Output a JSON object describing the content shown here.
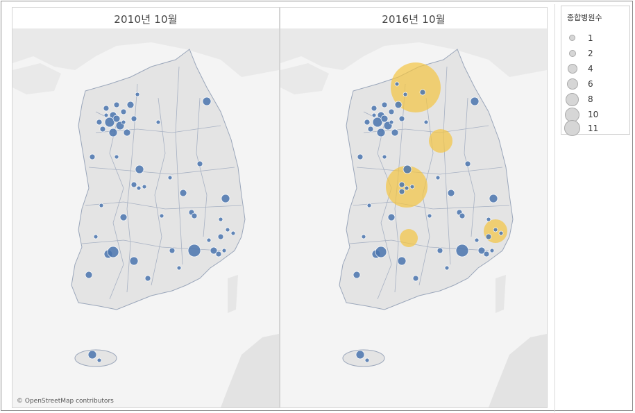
{
  "panels": [
    {
      "title": "2010년 10월",
      "attribution": "© OpenStreetMap contributors"
    },
    {
      "title": "2016년 10월",
      "attribution": ""
    }
  ],
  "legend": {
    "title": "종합병원수",
    "items": [
      {
        "label": "1",
        "value": 1
      },
      {
        "label": "2",
        "value": 2
      },
      {
        "label": "4",
        "value": 4
      },
      {
        "label": "6",
        "value": 6
      },
      {
        "label": "8",
        "value": 8
      },
      {
        "label": "10",
        "value": 10
      },
      {
        "label": "11",
        "value": 11
      }
    ]
  },
  "colors": {
    "hospital_marker": "#4a74ae",
    "highlight_marker": "#f4c542",
    "land": "#e6e6e6",
    "boundary": "#8f9db5",
    "sea": "#f4f4f4"
  }
}
